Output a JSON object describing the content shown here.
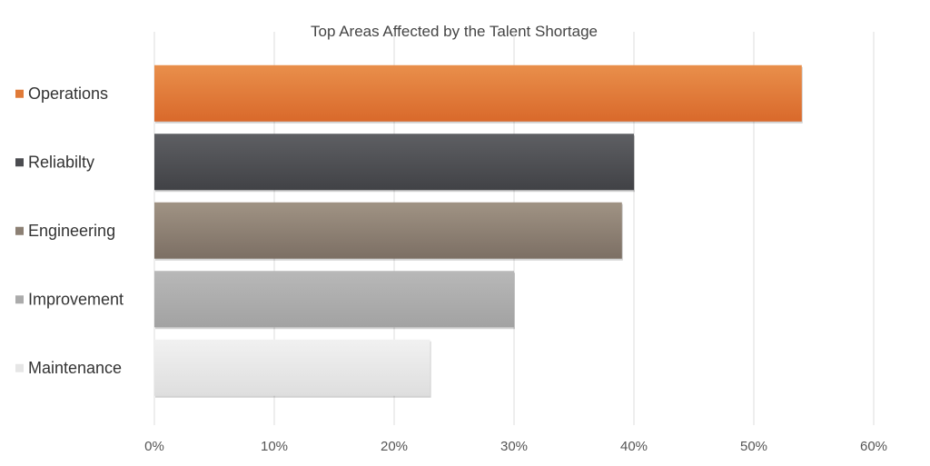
{
  "chart_data": {
    "type": "bar",
    "orientation": "horizontal",
    "title": "Top Areas Affected by the Talent Shortage",
    "categories": [
      "Operations",
      "Reliabilty",
      "Engineering",
      "Improvement",
      "Maintenance"
    ],
    "values": [
      54,
      40,
      39,
      30,
      23
    ],
    "value_unit": "%",
    "xlim": [
      0,
      60
    ],
    "xticks": [
      "0%",
      "10%",
      "20%",
      "30%",
      "40%",
      "50%",
      "60%"
    ],
    "grid": true,
    "legend": "left",
    "colors": {
      "Operations": [
        "#e98f4b",
        "#d9692b"
      ],
      "Reliabilty": [
        "#5e5f63",
        "#414246"
      ],
      "Engineering": [
        "#a09384",
        "#7c6f64"
      ],
      "Improvement": [
        "#b8b8b8",
        "#a2a2a2"
      ],
      "Maintenance": [
        "#f1f1f1",
        "#dedede"
      ]
    },
    "marker_colors": [
      "#e07a38",
      "#4b4c50",
      "#8c8074",
      "#ababab",
      "#e6e6e6"
    ]
  }
}
